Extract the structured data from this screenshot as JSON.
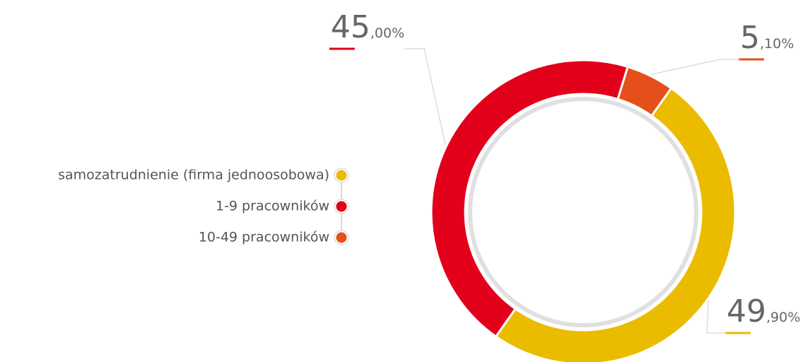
{
  "chart_data": {
    "type": "pie",
    "categories": [
      "samozatrudnienie (firma jednoosobowa)",
      "1-9 pracowników",
      "10-49 pracowników"
    ],
    "values": [
      49.9,
      45,
      5.1
    ],
    "value_labels": [
      "49,90%",
      "45,00%",
      "5,10%"
    ],
    "colors": [
      "#ebbb00",
      "#e2001a",
      "#e5501a"
    ],
    "donut": true
  }
}
